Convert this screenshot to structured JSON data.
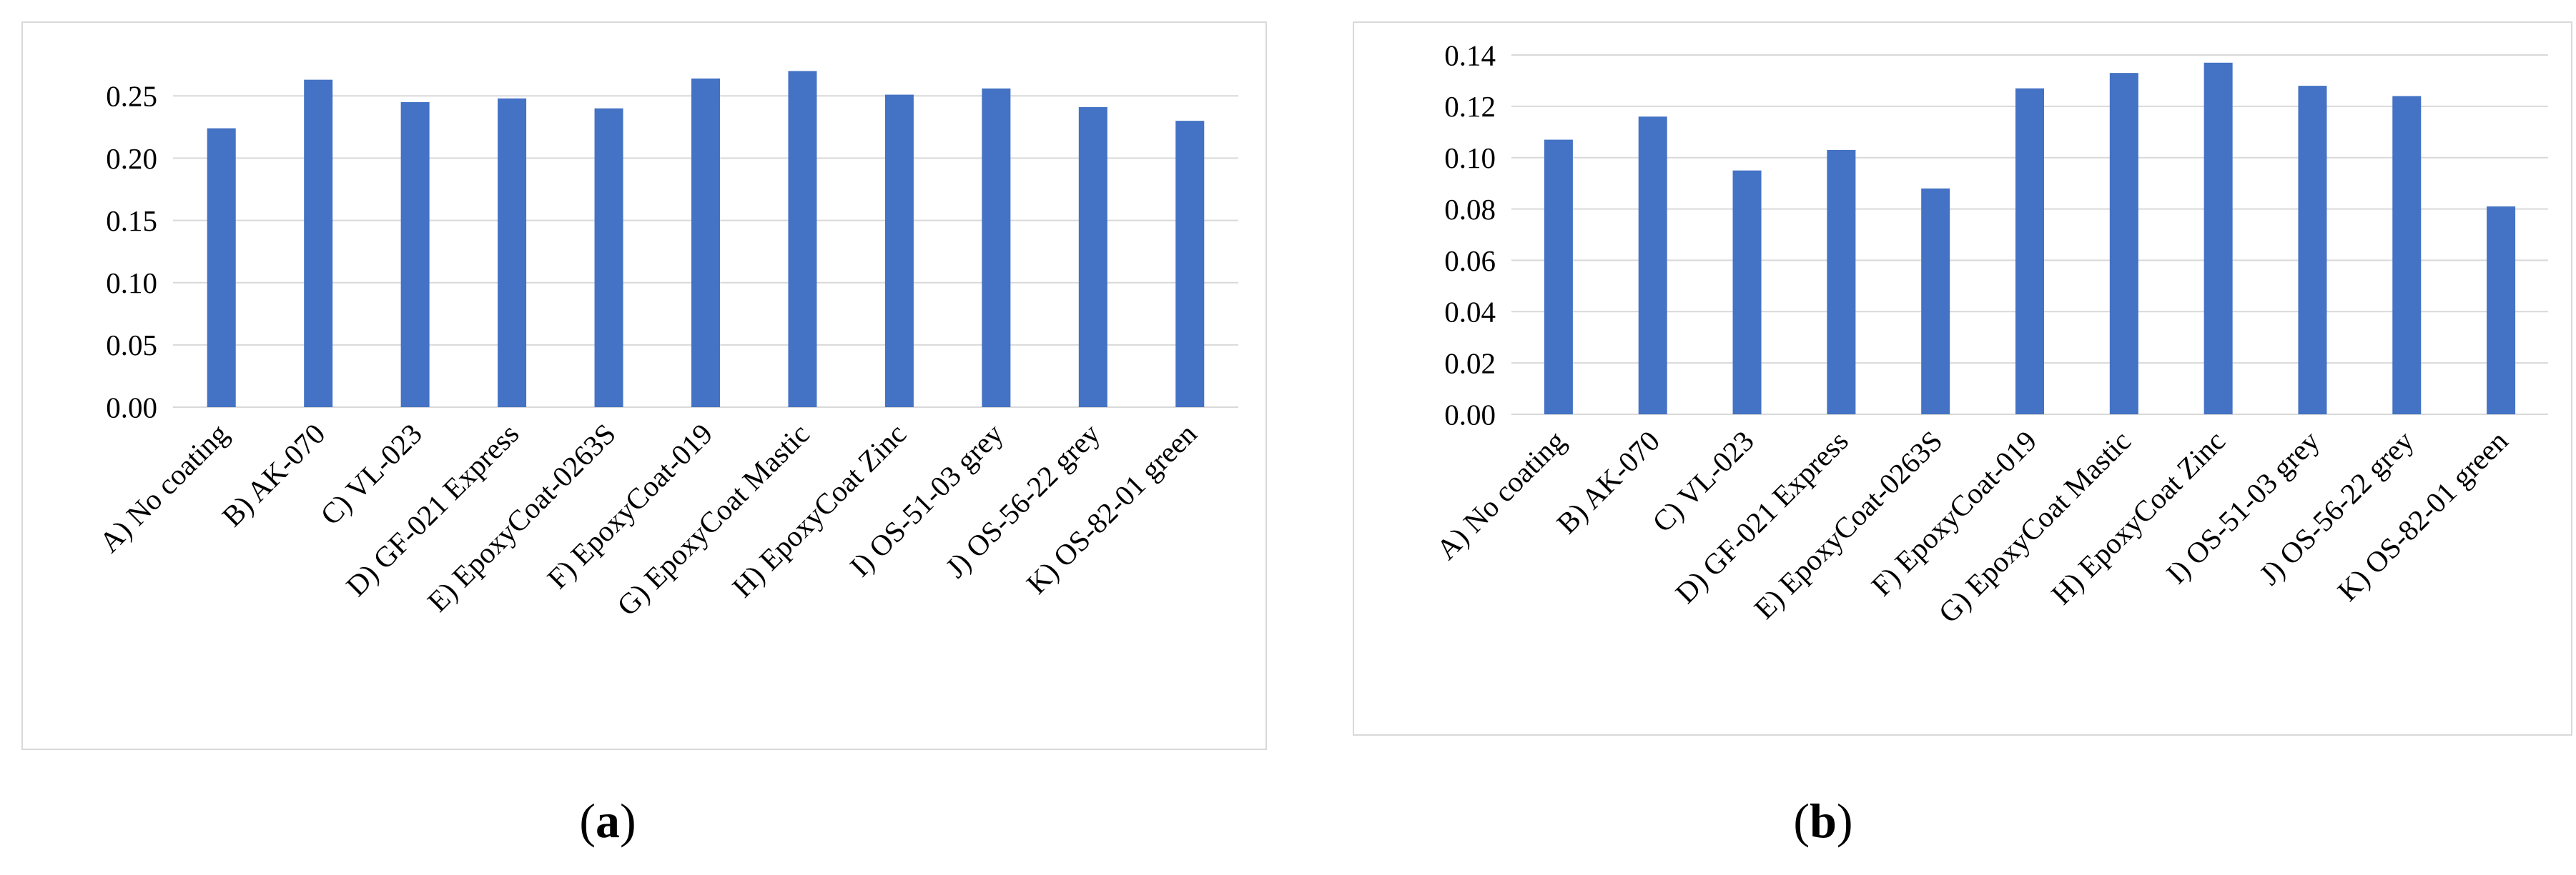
{
  "colors": {
    "bar": "#4472c4",
    "grid": "#d9d9d9",
    "frame": "#d9d9d9",
    "text": "#000000"
  },
  "chart_data": [
    {
      "type": "bar",
      "caption": "a",
      "categories": [
        "A) No coating",
        "B) AK-070",
        "C) VL-023",
        "D) GF-021 Express",
        "E) EpoxyCoat-0263S",
        "F) EpoxyCoat-019",
        "G) EpoxyCoat Mastic",
        "H) EpoxyCoat Zinc",
        "I) OS-51-03 grey",
        "J) OS-56-22 grey",
        "K) OS-82-01 green"
      ],
      "values": [
        0.224,
        0.263,
        0.245,
        0.248,
        0.24,
        0.264,
        0.27,
        0.251,
        0.256,
        0.241,
        0.23
      ],
      "yticks": [
        "0.00",
        "0.05",
        "0.10",
        "0.15",
        "0.20",
        "0.25"
      ],
      "ylim": [
        0,
        0.28
      ],
      "grid": true,
      "legend": "none",
      "title": "",
      "xlabel": "",
      "ylabel": ""
    },
    {
      "type": "bar",
      "caption": "b",
      "categories": [
        "A) No coating",
        "B) AK-070",
        "C) VL-023",
        "D) GF-021 Express",
        "E) EpoxyCoat-0263S",
        "F) EpoxyCoat-019",
        "G) EpoxyCoat Mastic",
        "H) EpoxyCoat Zinc",
        "I) OS-51-03 grey",
        "J) OS-56-22 grey",
        "K) OS-82-01 green"
      ],
      "values": [
        0.107,
        0.116,
        0.095,
        0.103,
        0.088,
        0.127,
        0.133,
        0.137,
        0.128,
        0.124,
        0.081
      ],
      "yticks": [
        "0.00",
        "0.02",
        "0.04",
        "0.06",
        "0.08",
        "0.10",
        "0.12",
        "0.14"
      ],
      "ylim": [
        0,
        0.14
      ],
      "grid": true,
      "legend": "none",
      "title": "",
      "xlabel": "",
      "ylabel": ""
    }
  ]
}
